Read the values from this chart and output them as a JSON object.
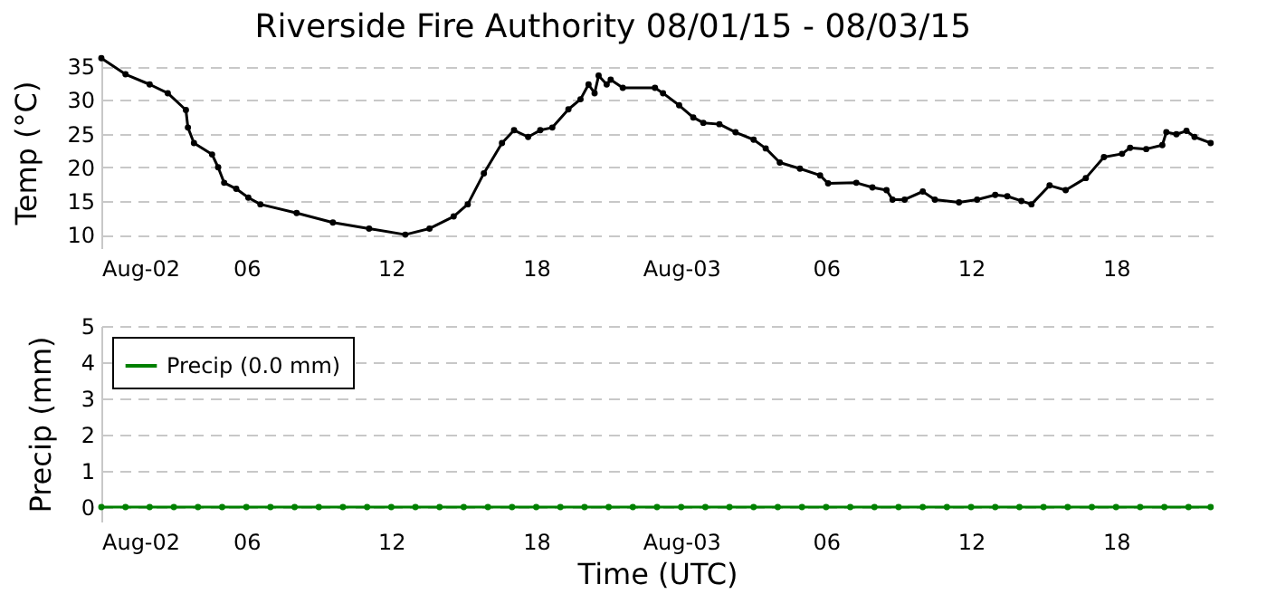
{
  "chart_data": [
    {
      "type": "line",
      "title": "Riverside Fire Authority 08/01/15 - 08/03/15",
      "ylabel": "Temp (°C)",
      "x": [
        "--08-02T00:00",
        "--08-02T01:00",
        "--08-02T02:00",
        "--08-02T02:45",
        "--08-02T03:30",
        "--08-02T03:35",
        "--08-02T03:50",
        "--08-02T04:35",
        "--08-02T04:50",
        "--08-02T05:05",
        "--08-02T05:35",
        "--08-02T06:05",
        "--08-02T06:35",
        "--08-02T08:05",
        "--08-02T09:35",
        "--08-02T11:05",
        "--08-02T12:35",
        "--08-02T13:35",
        "--08-02T14:35",
        "--08-02T15:10",
        "--08-02T15:50",
        "--08-02T16:35",
        "--08-02T17:05",
        "--08-02T17:40",
        "--08-02T18:10",
        "--08-02T18:40",
        "--08-02T19:20",
        "--08-02T19:50",
        "--08-02T20:10",
        "--08-02T20:25",
        "--08-02T20:35",
        "--08-02T20:55",
        "--08-02T21:05",
        "--08-02T21:35",
        "--08-02T22:55",
        "--08-02T23:15",
        "--08-02T23:55",
        "--08-03T00:30",
        "--08-03T00:55",
        "--08-03T01:35",
        "--08-03T02:15",
        "--08-03T03:00",
        "--08-03T03:30",
        "--08-03T04:05",
        "--08-03T04:55",
        "--08-03T05:45",
        "--08-03T06:05",
        "--08-03T07:15",
        "--08-03T07:55",
        "--08-03T08:30",
        "--08-03T08:45",
        "--08-03T09:15",
        "--08-03T10:00",
        "--08-03T10:30",
        "--08-03T11:30",
        "--08-03T12:15",
        "--08-03T13:00",
        "--08-03T13:30",
        "--08-03T14:05",
        "--08-03T14:30",
        "--08-03T15:15",
        "--08-03T15:55",
        "--08-03T16:45",
        "--08-03T17:30",
        "--08-03T18:15",
        "--08-03T18:35",
        "--08-03T19:15",
        "--08-03T19:55",
        "--08-03T20:05",
        "--08-03T20:30",
        "--08-03T20:55",
        "--08-03T21:15",
        "--08-03T21:55"
      ],
      "series": [
        {
          "color": "#000000",
          "values": [
            36.2,
            33.8,
            32.3,
            31.0,
            28.5,
            25.9,
            23.6,
            21.9,
            20.0,
            17.7,
            16.8,
            15.5,
            14.5,
            13.2,
            11.8,
            10.9,
            10.0,
            10.9,
            12.7,
            14.5,
            19.1,
            23.6,
            25.5,
            24.5,
            25.5,
            25.9,
            28.6,
            30.1,
            32.3,
            31.0,
            33.6,
            32.3,
            33.0,
            31.8,
            31.8,
            31.0,
            29.2,
            27.4,
            26.6,
            26.4,
            25.2,
            24.1,
            22.8,
            20.7,
            19.8,
            18.8,
            17.6,
            17.7,
            17.0,
            16.6,
            15.2,
            15.2,
            16.4,
            15.2,
            14.8,
            15.2,
            15.9,
            15.7,
            15.0,
            14.5,
            17.3,
            16.6,
            18.4,
            21.5,
            22.0,
            22.9,
            22.7,
            23.3,
            25.2,
            24.9,
            25.4,
            24.5,
            23.6
          ]
        }
      ],
      "xlim": [
        "--08-02T00:00",
        "--08-03T22:00"
      ],
      "xticks": [
        {
          "value": "--08-02T00:00",
          "label": "Aug-02"
        },
        {
          "value": "--08-02T06:00",
          "label": "06"
        },
        {
          "value": "--08-02T12:00",
          "label": "12"
        },
        {
          "value": "--08-02T18:00",
          "label": "18"
        },
        {
          "value": "--08-03T00:00",
          "label": "Aug-03"
        },
        {
          "value": "--08-03T06:00",
          "label": "06"
        },
        {
          "value": "--08-03T12:00",
          "label": "12"
        },
        {
          "value": "--08-03T18:00",
          "label": "18"
        }
      ],
      "ylim": [
        8,
        36.5
      ],
      "yticks": [
        10,
        15,
        20,
        25,
        30,
        35
      ],
      "grid": "y",
      "marker": "circle",
      "line_style": "solid",
      "legend": false
    },
    {
      "type": "line",
      "ylabel": "Precip (mm)",
      "xlabel": "Time (UTC)",
      "x": [
        "--08-02T00:00",
        "--08-02T01:00",
        "--08-02T02:00",
        "--08-02T03:00",
        "--08-02T04:00",
        "--08-02T05:00",
        "--08-02T06:00",
        "--08-02T07:00",
        "--08-02T08:00",
        "--08-02T09:00",
        "--08-02T10:00",
        "--08-02T11:00",
        "--08-02T12:00",
        "--08-02T13:00",
        "--08-02T14:00",
        "--08-02T15:00",
        "--08-02T16:00",
        "--08-02T17:00",
        "--08-02T18:00",
        "--08-02T19:00",
        "--08-02T20:00",
        "--08-02T21:00",
        "--08-02T22:00",
        "--08-02T23:00",
        "--08-03T00:00",
        "--08-03T01:00",
        "--08-03T02:00",
        "--08-03T03:00",
        "--08-03T04:00",
        "--08-03T05:00",
        "--08-03T06:00",
        "--08-03T07:00",
        "--08-03T08:00",
        "--08-03T09:00",
        "--08-03T10:00",
        "--08-03T11:00",
        "--08-03T12:00",
        "--08-03T13:00",
        "--08-03T14:00",
        "--08-03T15:00",
        "--08-03T16:00",
        "--08-03T17:00",
        "--08-03T18:00",
        "--08-03T19:00",
        "--08-03T20:00",
        "--08-03T21:00",
        "--08-03T21:55"
      ],
      "series": [
        {
          "name": "Precip (0.0 mm)",
          "color": "#008000",
          "values": [
            0,
            0,
            0,
            0,
            0,
            0,
            0,
            0,
            0,
            0,
            0,
            0,
            0,
            0,
            0,
            0,
            0,
            0,
            0,
            0,
            0,
            0,
            0,
            0,
            0,
            0,
            0,
            0,
            0,
            0,
            0,
            0,
            0,
            0,
            0,
            0,
            0,
            0,
            0,
            0,
            0,
            0,
            0,
            0,
            0,
            0,
            0
          ]
        }
      ],
      "xlim": [
        "--08-02T00:00",
        "--08-03T22:00"
      ],
      "xticks": [
        {
          "value": "--08-02T00:00",
          "label": "Aug-02"
        },
        {
          "value": "--08-02T06:00",
          "label": "06"
        },
        {
          "value": "--08-02T12:00",
          "label": "12"
        },
        {
          "value": "--08-02T18:00",
          "label": "18"
        },
        {
          "value": "--08-03T00:00",
          "label": "Aug-03"
        },
        {
          "value": "--08-03T06:00",
          "label": "06"
        },
        {
          "value": "--08-03T12:00",
          "label": "12"
        },
        {
          "value": "--08-03T18:00",
          "label": "18"
        }
      ],
      "ylim": [
        -0.4,
        5
      ],
      "yticks": [
        0,
        1,
        2,
        3,
        4,
        5
      ],
      "grid": "y",
      "marker": "circle",
      "line_style": "solid",
      "legend": "top left"
    }
  ]
}
